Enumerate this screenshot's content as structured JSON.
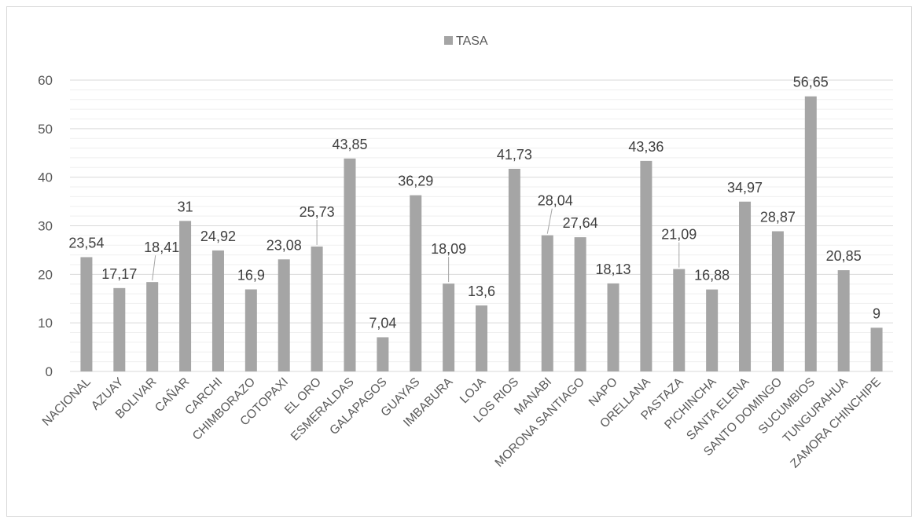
{
  "chart_data": {
    "type": "bar",
    "title": "",
    "xlabel": "",
    "ylabel": "",
    "ylim": [
      0,
      60
    ],
    "yticks": [
      0,
      10,
      20,
      30,
      40,
      50,
      60
    ],
    "grid": true,
    "legend_position": "top-center",
    "series": [
      {
        "name": "TASA",
        "color": "#a5a5a5",
        "values": [
          23.54,
          17.17,
          18.41,
          31,
          24.92,
          16.9,
          23.08,
          25.73,
          43.85,
          7.04,
          36.29,
          18.09,
          13.6,
          41.73,
          28.04,
          27.64,
          18.13,
          43.36,
          21.09,
          16.88,
          34.97,
          28.87,
          56.65,
          20.85,
          9
        ],
        "data_labels": [
          "23,54",
          "17,17",
          "18,41",
          "31",
          "24,92",
          "16,9",
          "23,08",
          "25,73",
          "43,85",
          "7,04",
          "36,29",
          "18,09",
          "13,6",
          "41,73",
          "28,04",
          "27,64",
          "18,13",
          "43,36",
          "21,09",
          "16,88",
          "34,97",
          "28,87",
          "56,65",
          "20,85",
          "9"
        ]
      }
    ],
    "categories": [
      "NACIONAL",
      "AZUAY",
      "BOLIVAR",
      "CAÑAR",
      "CARCHI",
      "CHIMBORAZO",
      "COTOPAXI",
      "EL ORO",
      "ESMERALDAS",
      "GALAPAGOS",
      "GUAYAS",
      "IMBABURA",
      "LOJA",
      "LOS RIOS",
      "MANABI",
      "MORONA SANTIAGO",
      "NAPO",
      "ORELLANA",
      "PASTAZA",
      "PICHINCHA",
      "SANTA ELENA",
      "SANTO DOMINGO",
      "SUCUMBIOS",
      "TUNGURAHUA",
      "ZAMORA CHINCHIPE"
    ]
  }
}
